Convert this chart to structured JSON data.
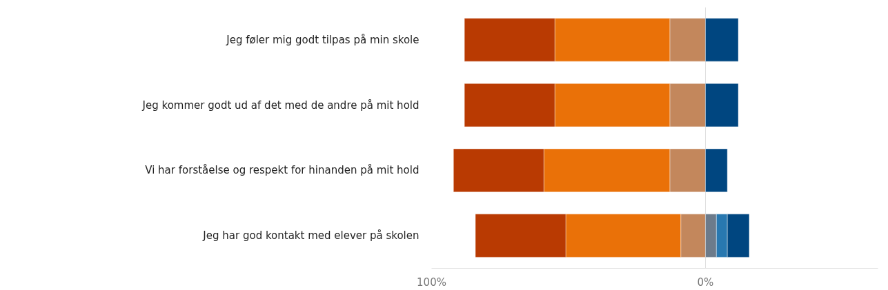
{
  "chart_data": {
    "type": "bar",
    "orientation": "horizontal",
    "stacked": true,
    "categories": [
      "Jeg føler mig godt tilpas på min skole",
      "Jeg kommer godt ud af det med de andre på mit hold",
      "Vi har forståelse og respekt for hinanden på mit hold",
      "Jeg har god kontakt med elever på skolen"
    ],
    "series": [
      {
        "color": "#c3875c",
        "values": [
          -13,
          -13,
          -13,
          -9
        ]
      },
      {
        "color": "#ea7108",
        "values": [
          -42,
          -42,
          -46,
          -42
        ]
      },
      {
        "color": "#b93a02",
        "values": [
          -33,
          -33,
          -33,
          -33
        ]
      },
      {
        "color": "#6c7b8b",
        "values": [
          null,
          null,
          null,
          4
        ]
      },
      {
        "color": "#2878b0",
        "values": [
          null,
          null,
          null,
          4
        ]
      },
      {
        "color": "#004680",
        "values": [
          12,
          12,
          8,
          8
        ]
      }
    ],
    "xlim": [
      -100,
      63
    ],
    "xticks": [
      {
        "value": -100,
        "label": "100%"
      },
      {
        "value": 0,
        "label": "0%"
      }
    ],
    "grid": "x"
  }
}
